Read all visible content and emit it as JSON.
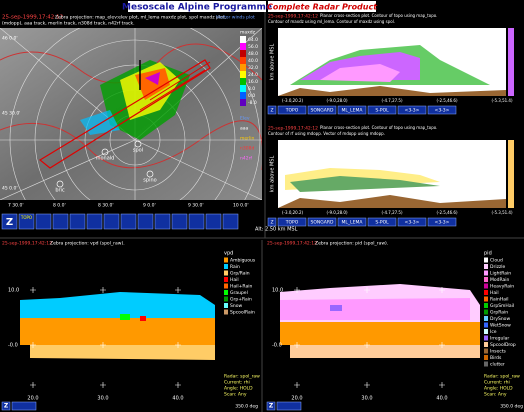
{
  "banner": {
    "title": "Mesoscale Alpine Programme",
    "subtitle": "Complete Radar Product"
  },
  "map_panel": {
    "timestamp": "25-sep-1999,17:42:12",
    "header1": "Zebra projection: map_elev:elev plot, ml_lema maxdz plot, spol maxdz plot,",
    "header_link": "Vector winds plot",
    "header2": "(mdopp), aaa track, merlin track, n308d track, n42rf track.",
    "lat_labels": [
      "46 0.0'",
      "45 30.0'",
      "45 0.0'"
    ],
    "lon_labels": [
      "7 30.0'",
      "8 0.0'",
      "8 30.0'",
      "9 0.0'",
      "9 30.0'",
      "10 0.0'"
    ],
    "stations": [
      "spol",
      "monald",
      "spino",
      "bric"
    ],
    "colorbar": {
      "title": "maxdz",
      "values": [
        "64.0",
        "56.0",
        "48.0",
        "40.0",
        "32.0",
        "24.0",
        "16.0",
        "8.0",
        "0.0",
        "-8.0"
      ],
      "colors": [
        "#ffffff",
        "#ff00ff",
        "#c00000",
        "#ff4000",
        "#ff9900",
        "#ffff00",
        "#00c000",
        "#00ffff",
        "#0060ff",
        "#6000c0"
      ]
    },
    "tracks": [
      {
        "name": "Elev",
        "color": "#6699ff"
      },
      {
        "name": "aaa",
        "color": "#ffffff"
      },
      {
        "name": "merlin",
        "color": "#ffcc00"
      },
      {
        "name": "n308d",
        "color": "#ff3333"
      },
      {
        "name": "n42rf",
        "color": "#ff66ff"
      }
    ],
    "toolbar": [
      "Z",
      "TOPO"
    ],
    "altitude": "Alt: 2.50 km MSL"
  },
  "cross_sections": [
    {
      "timestamp": "25-sep-1999,17:42:12",
      "header1": "Planar cross-section plot. Contour of topo using map_topo.",
      "header2": "Contour of maxdz using ml_lema. Contour of maxdz using spol.",
      "ylabel": "km above MSL",
      "xlabels": [
        "(-3.0,20.2)",
        "(-9.0,28.0)",
        "(-4.7,27.5)",
        "(-2.5,46.6)",
        "(-5.3,51.4)"
      ],
      "buttons": [
        "Z",
        "TOPO",
        "SONGARD",
        "ML_LEMA",
        "S-POL",
        "<3-3>",
        "<3-3>"
      ]
    },
    {
      "timestamp": "25-sep-1999,17:42:12",
      "header1": "Planar cross-section plot. Contour of topo using map_topo.",
      "header2": "Contour of rf using mdopp. Vector of mdopp using mdopp.",
      "ylabel": "km above MSL",
      "xlabels": [
        "(-3.0,20.2)",
        "(-9.0,28.0)",
        "(-4.7,27.5)",
        "(-2.5,46.6)",
        "(-5.3,51.4)"
      ],
      "buttons": [
        "Z",
        "TOPO",
        "SONGARD",
        "ML_LEMA",
        "S-POL",
        "<3-3>",
        "<3-3>"
      ]
    }
  ],
  "rhi_panels": [
    {
      "timestamp": "25-sep-1999,17:42:12",
      "header": "Zebra projection: vpd (spol_raw).",
      "legend_title": "vpd",
      "legend": [
        {
          "name": "Ambiguous",
          "color": "#ff9900"
        },
        {
          "name": "Rain",
          "color": "#00ccff"
        },
        {
          "name": "Grp/Rain",
          "color": "#ffcc66"
        },
        {
          "name": "Hail",
          "color": "#ff0000"
        },
        {
          "name": "Hail+Rain",
          "color": "#ff6600"
        },
        {
          "name": "Graupel",
          "color": "#00ff00"
        },
        {
          "name": "Grp+Rain",
          "color": "#009900"
        },
        {
          "name": "Snow",
          "color": "#66ffff"
        },
        {
          "name": "SpcoolRain",
          "color": "#cc9966"
        }
      ],
      "yticks": [
        "10.0",
        "-0.0"
      ],
      "xticks": [
        "20.0",
        "30.0",
        "40.0"
      ],
      "info": [
        "Radar: spol_raw",
        "Current: rhi",
        "Angle: HOLD",
        "Scan: Any"
      ],
      "footer": "350.0 deg",
      "buttons": [
        "Z"
      ]
    },
    {
      "timestamp": "25-sep-1999,17:42:12",
      "header": "Zebra projection: pid (spol_raw).",
      "legend_title": "pid",
      "legend": [
        {
          "name": "Cloud",
          "color": "#ffffff"
        },
        {
          "name": "Drizzle",
          "color": "#ffccff"
        },
        {
          "name": "LightRain",
          "color": "#ff99ff"
        },
        {
          "name": "ModRain",
          "color": "#ff66cc"
        },
        {
          "name": "HeavyRain",
          "color": "#cc0099"
        },
        {
          "name": "Hail",
          "color": "#ff0000"
        },
        {
          "name": "RainHail",
          "color": "#ff6600"
        },
        {
          "name": "GrpSmHail",
          "color": "#00cc00"
        },
        {
          "name": "GrpRain",
          "color": "#009900"
        },
        {
          "name": "DrySnow",
          "color": "#66ccff"
        },
        {
          "name": "WetSnow",
          "color": "#3366ff"
        },
        {
          "name": "Ice",
          "color": "#ccffff"
        },
        {
          "name": "Irregular",
          "color": "#9966ff"
        },
        {
          "name": "SpcoolDrop",
          "color": "#ffcc99"
        },
        {
          "name": "Insects",
          "color": "#996633"
        },
        {
          "name": "Birds",
          "color": "#cc6600"
        },
        {
          "name": "clutter",
          "color": "#666666"
        }
      ],
      "yticks": [
        "10.0",
        "-0.0"
      ],
      "xticks": [
        "20.0",
        "30.0",
        "40.0"
      ],
      "info": [
        "Radar: spol_raw",
        "Current: rhi",
        "Angle: HOLD",
        "Scan: Any"
      ],
      "footer": "350.0 deg",
      "buttons": [
        "Z"
      ]
    }
  ]
}
